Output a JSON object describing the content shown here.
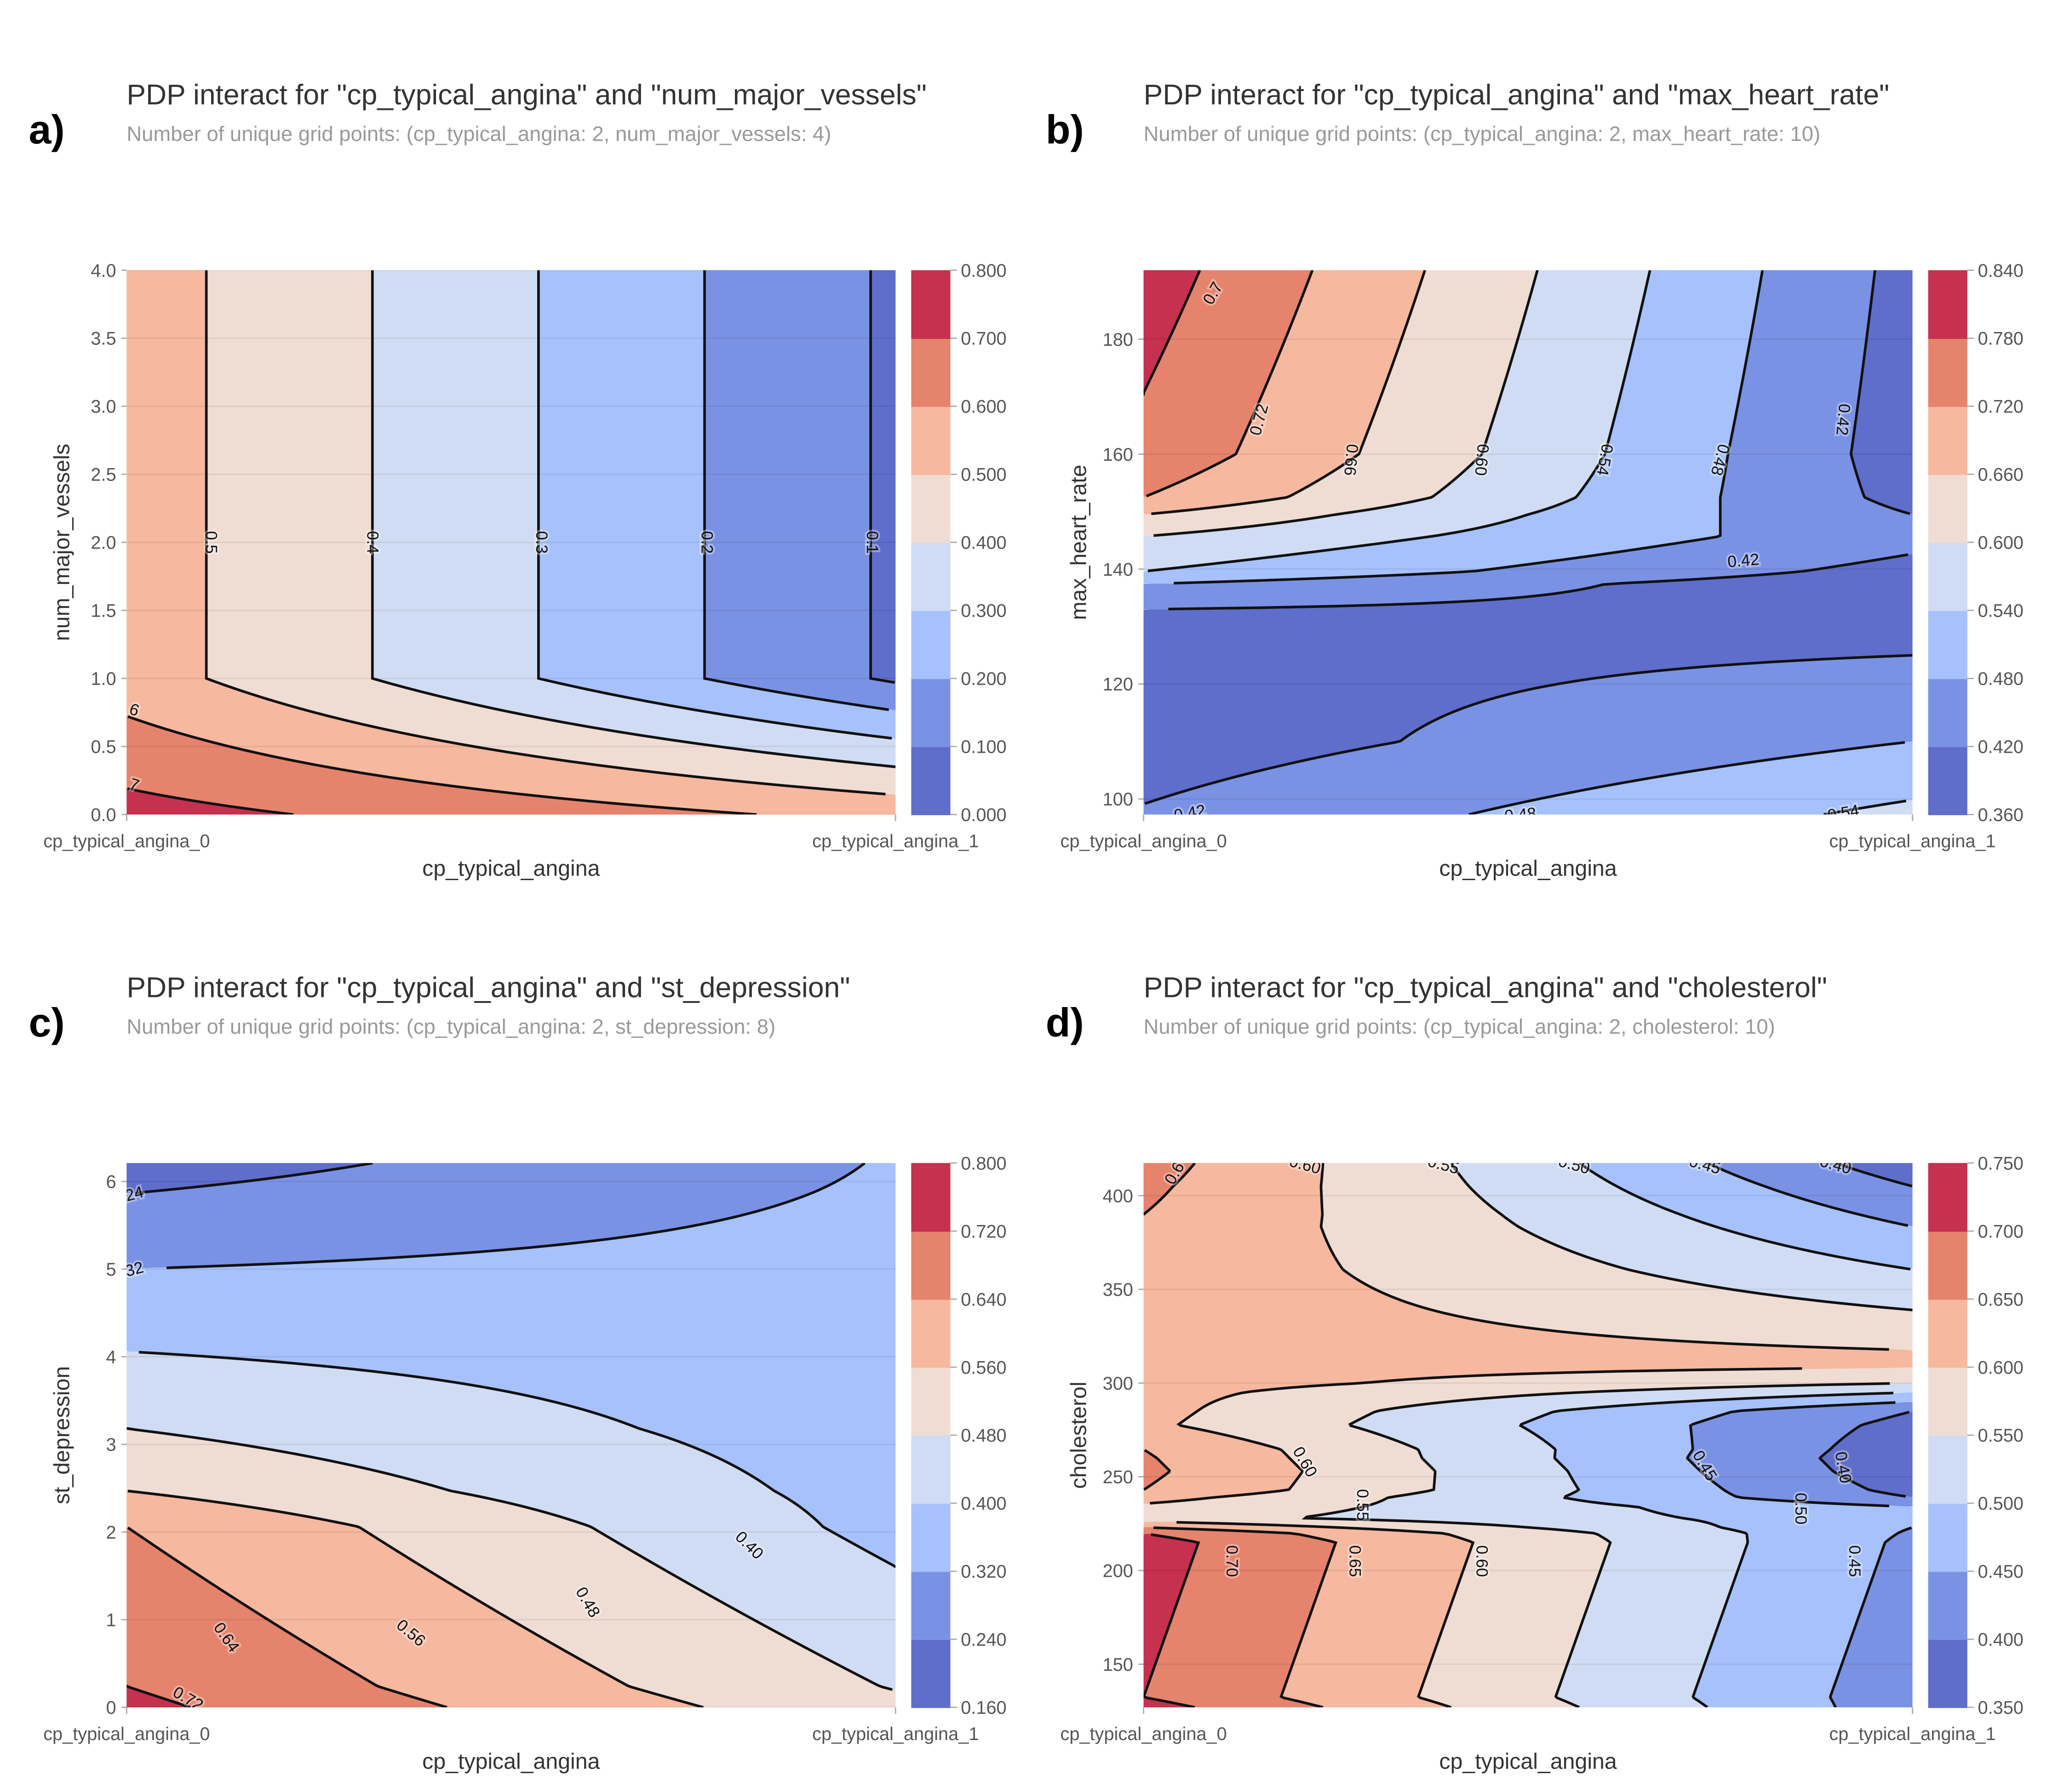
{
  "band_colors": [
    "#5f6dcb",
    "#7a92e4",
    "#a6c1fb",
    "#d0dcf3",
    "#efdcd3",
    "#f6b89e",
    "#e5836d",
    "#c5314f"
  ],
  "line_color": "#111111",
  "charts": [
    {
      "type": "contour",
      "panel": "a)",
      "title": "PDP interact for \"cp_typical_angina\" and \"num_major_vessels\"",
      "subtitle": "Number of unique grid points: (cp_typical_angina: 2, num_major_vessels: 4)",
      "xlabel": "cp_typical_angina",
      "ylabel": "num_major_vessels",
      "xticklabels": [
        "cp_typical_angina_0",
        "cp_typical_angina_1"
      ],
      "ylim": [
        0,
        4
      ],
      "yticks": [
        0,
        0.5,
        1,
        1.5,
        2,
        2.5,
        3,
        3.5,
        4
      ],
      "yticklabels": [
        "0.0",
        "0.5",
        "1.0",
        "1.5",
        "2.0",
        "2.5",
        "3.0",
        "3.5",
        "4.0"
      ],
      "levels": [
        0,
        0.1,
        0.2,
        0.3,
        0.4,
        0.5,
        0.6,
        0.7,
        0.8
      ],
      "colorbar_ticklabels": [
        "0.000",
        "0.100",
        "0.200",
        "0.300",
        "0.400",
        "0.500",
        "0.600",
        "0.700",
        "0.800"
      ],
      "grid": {
        "y": [
          0,
          1,
          4
        ],
        "v_x0": [
          0.736,
          0.548,
          0.548
        ],
        "v_x1": [
          0.57,
          0.085,
          0.085
        ]
      },
      "contour_labels": [
        {
          "text": "0.5",
          "x": 0.11,
          "y": 2.0
        },
        {
          "text": "0.4",
          "x": 0.32,
          "y": 2.0
        },
        {
          "text": "0.3",
          "x": 0.54,
          "y": 2.0
        },
        {
          "text": "0.2",
          "x": 0.755,
          "y": 2.0
        },
        {
          "text": "0.1",
          "x": 0.97,
          "y": 2.0
        },
        {
          "text": "6",
          "x": 0.01,
          "y": 0.77
        },
        {
          "text": "7",
          "x": 0.01,
          "y": 0.22
        }
      ]
    },
    {
      "type": "contour",
      "panel": "b)",
      "title": "PDP interact for \"cp_typical_angina\" and \"max_heart_rate\"",
      "subtitle": "Number of unique grid points: (cp_typical_angina: 2, max_heart_rate: 10)",
      "xlabel": "cp_typical_angina",
      "ylabel": "max_heart_rate",
      "xticklabels": [
        "cp_typical_angina_0",
        "cp_typical_angina_1"
      ],
      "ylim": [
        97.3,
        192
      ],
      "yticks": [
        100,
        120,
        140,
        160,
        180
      ],
      "yticklabels": [
        "100",
        "120",
        "140",
        "160",
        "180"
      ],
      "levels": [
        0.36,
        0.42,
        0.48,
        0.54,
        0.6,
        0.66,
        0.72,
        0.78,
        0.84
      ],
      "colorbar_ticklabels": [
        "0.360",
        "0.420",
        "0.480",
        "0.540",
        "0.600",
        "0.660",
        "0.720",
        "0.780",
        "0.840"
      ],
      "grid": {
        "y": [
          97.3,
          110,
          125,
          133,
          137.4,
          139.6,
          145.7,
          149.5,
          152.5,
          160,
          192
        ],
        "v_x0": [
          0.425,
          0.39,
          0.4,
          0.42,
          0.48,
          0.54,
          0.6,
          0.66,
          0.72,
          0.765,
          0.81
        ],
        "v_x1": [
          0.555,
          0.48,
          0.42,
          0.4,
          0.38,
          0.4,
          0.44,
          0.42,
          0.4,
          0.39,
          0.4
        ]
      },
      "contour_labels": [
        {
          "text": "0.7",
          "x": 0.09,
          "y": 188
        },
        {
          "text": "0.72",
          "x": 0.15,
          "y": 166
        },
        {
          "text": "0.66",
          "x": 0.27,
          "y": 159
        },
        {
          "text": "0.60",
          "x": 0.44,
          "y": 159
        },
        {
          "text": "0.54",
          "x": 0.6,
          "y": 159
        },
        {
          "text": "0.48",
          "x": 0.75,
          "y": 159
        },
        {
          "text": "0.42",
          "x": 0.91,
          "y": 166
        },
        {
          "text": "0.42",
          "x": 0.78,
          "y": 141.5
        },
        {
          "text": "0.42",
          "x": 0.06,
          "y": 97.6
        },
        {
          "text": "0.48",
          "x": 0.49,
          "y": 97.3
        },
        {
          "text": "0.54",
          "x": 0.91,
          "y": 97.6
        }
      ]
    },
    {
      "type": "contour",
      "panel": "c)",
      "title": "PDP interact for \"cp_typical_angina\" and \"st_depression\"",
      "subtitle": "Number of unique grid points: (cp_typical_angina: 2, st_depression: 8)",
      "xlabel": "cp_typical_angina",
      "ylabel": "st_depression",
      "xticklabels": [
        "cp_typical_angina_0",
        "cp_typical_angina_1"
      ],
      "ylim": [
        0,
        6.21
      ],
      "yticks": [
        0,
        1,
        2,
        3,
        4,
        5,
        6
      ],
      "yticklabels": [
        "0",
        "1",
        "2",
        "3",
        "4",
        "5",
        "6"
      ],
      "levels": [
        0.16,
        0.24,
        0.32,
        0.4,
        0.48,
        0.56,
        0.64,
        0.72,
        0.8
      ],
      "colorbar_ticklabels": [
        "0.160",
        "0.240",
        "0.320",
        "0.400",
        "0.480",
        "0.560",
        "0.640",
        "0.720",
        "0.800"
      ],
      "grid": {
        "y": [
          0,
          0.24,
          2.06,
          2.47,
          3.18,
          4.06,
          5.0,
          5.86,
          6.21
        ],
        "v_x0": [
          0.74,
          0.72,
          0.64,
          0.56,
          0.48,
          0.4,
          0.32,
          0.24,
          0.2
        ],
        "v_x1": [
          0.5,
          0.475,
          0.375,
          0.37,
          0.36,
          0.355,
          0.345,
          0.33,
          0.325
        ]
      },
      "contour_labels": [
        {
          "text": "24",
          "x": 0.01,
          "y": 5.86
        },
        {
          "text": "32",
          "x": 0.01,
          "y": 5.0
        },
        {
          "text": "0.72",
          "x": 0.08,
          "y": 0.1
        },
        {
          "text": "0.64",
          "x": 0.13,
          "y": 0.8
        },
        {
          "text": "0.56",
          "x": 0.37,
          "y": 0.85
        },
        {
          "text": "0.48",
          "x": 0.6,
          "y": 1.2
        },
        {
          "text": "0.40",
          "x": 0.81,
          "y": 1.85
        }
      ]
    },
    {
      "type": "contour",
      "panel": "d)",
      "title": "PDP interact for \"cp_typical_angina\" and \"cholesterol\"",
      "subtitle": "Number of unique grid points: (cp_typical_angina: 2, cholesterol: 10)",
      "xlabel": "cp_typical_angina",
      "ylabel": "cholesterol",
      "xticklabels": [
        "cp_typical_angina_0",
        "cp_typical_angina_1"
      ],
      "ylim": [
        127,
        417.4
      ],
      "yticks": [
        150,
        200,
        250,
        300,
        350,
        400
      ],
      "yticklabels": [
        "150",
        "200",
        "250",
        "300",
        "350",
        "400"
      ],
      "levels": [
        0.35,
        0.4,
        0.45,
        0.5,
        0.55,
        0.6,
        0.65,
        0.7,
        0.75
      ],
      "colorbar_ticklabels": [
        "0.350",
        "0.400",
        "0.450",
        "0.500",
        "0.550",
        "0.600",
        "0.650",
        "0.700",
        "0.750"
      ],
      "grid": {
        "y": [
          127,
          132.4,
          215,
          219.8,
          223,
          228,
          234,
          239,
          243,
          253,
          260,
          264.6,
          277.6,
          285,
          290,
          295,
          300,
          310,
          317.6,
          339,
          360.6,
          383.5,
          390,
          405,
          417.4
        ],
        "v_x0": [
          0.72,
          0.7,
          0.72,
          0.7,
          0.65,
          0.57,
          0.59,
          0.62,
          0.65,
          0.66,
          0.655,
          0.65,
          0.61,
          0.615,
          0.615,
          0.615,
          0.62,
          0.62,
          0.625,
          0.63,
          0.635,
          0.645,
          0.65,
          0.66,
          0.67
        ],
        "v_x1": [
          0.42,
          0.42,
          0.44,
          0.445,
          0.45,
          0.47,
          0.45,
          0.4,
          0.385,
          0.37,
          0.365,
          0.37,
          0.385,
          0.4,
          0.45,
          0.5,
          0.55,
          0.61,
          0.6,
          0.55,
          0.5,
          0.45,
          0.435,
          0.4,
          0.37
        ]
      },
      "contour_labels": [
        {
          "text": "0.6",
          "x": 0.04,
          "y": 412
        },
        {
          "text": "0.60",
          "x": 0.21,
          "y": 416.5
        },
        {
          "text": "0.55",
          "x": 0.39,
          "y": 416.5
        },
        {
          "text": "0.50",
          "x": 0.56,
          "y": 416.5
        },
        {
          "text": "0.45",
          "x": 0.73,
          "y": 416.5
        },
        {
          "text": "0.40",
          "x": 0.9,
          "y": 416.5
        },
        {
          "text": "0.60",
          "x": 0.21,
          "y": 258
        },
        {
          "text": "0.55",
          "x": 0.285,
          "y": 235
        },
        {
          "text": "0.45",
          "x": 0.73,
          "y": 256
        },
        {
          "text": "0.40",
          "x": 0.91,
          "y": 255
        },
        {
          "text": "0.50",
          "x": 0.855,
          "y": 233
        },
        {
          "text": "0.70",
          "x": 0.115,
          "y": 205
        },
        {
          "text": "0.65",
          "x": 0.275,
          "y": 205
        },
        {
          "text": "0.60",
          "x": 0.44,
          "y": 205
        },
        {
          "text": "0.45",
          "x": 0.925,
          "y": 205
        }
      ]
    }
  ]
}
